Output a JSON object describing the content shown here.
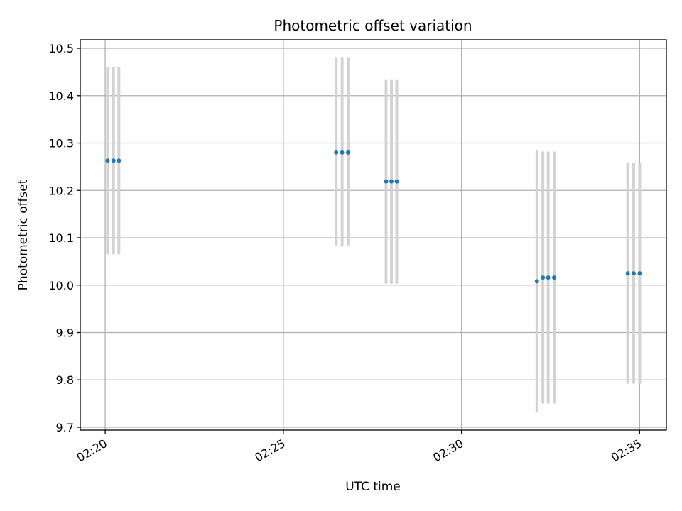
{
  "chart_data": {
    "type": "scatter",
    "title": "Photometric offset variation",
    "xlabel": "UTC time",
    "ylabel": "Photometric offset",
    "x_tick_labels": [
      "02:20",
      "02:25",
      "02:30",
      "02:35"
    ],
    "y_tick_labels": [
      "9.7",
      "9.8",
      "9.9",
      "10.0",
      "10.1",
      "10.2",
      "10.3",
      "10.4",
      "10.5"
    ],
    "x_ticks": [
      "02:20",
      "02:25",
      "02:30",
      "02:35"
    ],
    "y_ticks": [
      9.7,
      9.8,
      9.9,
      10.0,
      10.1,
      10.2,
      10.3,
      10.4,
      10.5
    ],
    "xlim": [
      "02:19:18",
      "02:35:45"
    ],
    "ylim": [
      9.694,
      10.518
    ],
    "grid": true,
    "colors": {
      "marker": "#1f77b4",
      "errorbar": "#d3d3d3",
      "grid": "#b0b0b0"
    },
    "series": [
      {
        "points": [
          {
            "x": "02:20:04",
            "y": 10.263,
            "ylow": 10.065,
            "yhigh": 10.461
          },
          {
            "x": "02:20:14",
            "y": 10.263,
            "ylow": 10.065,
            "yhigh": 10.461
          },
          {
            "x": "02:20:23",
            "y": 10.263,
            "ylow": 10.065,
            "yhigh": 10.461
          },
          {
            "x": "02:26:29",
            "y": 10.28,
            "ylow": 10.082,
            "yhigh": 10.48
          },
          {
            "x": "02:26:39",
            "y": 10.28,
            "ylow": 10.082,
            "yhigh": 10.48
          },
          {
            "x": "02:26:49",
            "y": 10.28,
            "ylow": 10.082,
            "yhigh": 10.48
          },
          {
            "x": "02:27:53",
            "y": 10.219,
            "ylow": 10.003,
            "yhigh": 10.433
          },
          {
            "x": "02:28:02",
            "y": 10.219,
            "ylow": 10.003,
            "yhigh": 10.433
          },
          {
            "x": "02:28:11",
            "y": 10.219,
            "ylow": 10.003,
            "yhigh": 10.433
          },
          {
            "x": "02:32:07",
            "y": 10.008,
            "ylow": 9.731,
            "yhigh": 10.285
          },
          {
            "x": "02:32:17",
            "y": 10.016,
            "ylow": 9.75,
            "yhigh": 10.282
          },
          {
            "x": "02:32:26",
            "y": 10.016,
            "ylow": 9.75,
            "yhigh": 10.282
          },
          {
            "x": "02:32:36",
            "y": 10.016,
            "ylow": 9.75,
            "yhigh": 10.282
          },
          {
            "x": "02:34:40",
            "y": 10.025,
            "ylow": 9.792,
            "yhigh": 10.259
          },
          {
            "x": "02:34:50",
            "y": 10.025,
            "ylow": 9.792,
            "yhigh": 10.259
          },
          {
            "x": "02:35:00",
            "y": 10.025,
            "ylow": 9.792,
            "yhigh": 10.259
          }
        ]
      }
    ]
  }
}
